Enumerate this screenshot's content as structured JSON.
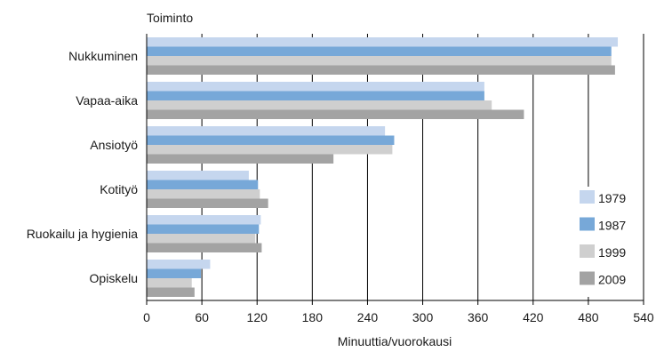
{
  "chart_data": {
    "type": "bar",
    "orientation": "horizontal",
    "title": "",
    "ylabel": "Toiminto",
    "xlabel": "Minuuttia/vuorokausi",
    "categories": [
      "Nukkuminen",
      "Vapaa-aika",
      "Ansiotyö",
      "Kotityö",
      "Ruokailu ja hygienia",
      "Opiskelu"
    ],
    "series": [
      {
        "name": "1979",
        "color": "#c5d6ee",
        "values": [
          512,
          367,
          259,
          111,
          124,
          69
        ]
      },
      {
        "name": "1987",
        "color": "#77a8d8",
        "values": [
          505,
          367,
          269,
          121,
          122,
          59
        ]
      },
      {
        "name": "1999",
        "color": "#cfcfcf",
        "values": [
          505,
          375,
          267,
          123,
          118,
          49
        ]
      },
      {
        "name": "2009",
        "color": "#a3a3a3",
        "values": [
          509,
          410,
          203,
          132,
          125,
          52
        ]
      }
    ],
    "xlim": [
      0,
      540
    ],
    "xticks": [
      0,
      60,
      120,
      180,
      240,
      300,
      360,
      420,
      480,
      540
    ],
    "grid": "vertical",
    "legend": "bottom-right"
  }
}
